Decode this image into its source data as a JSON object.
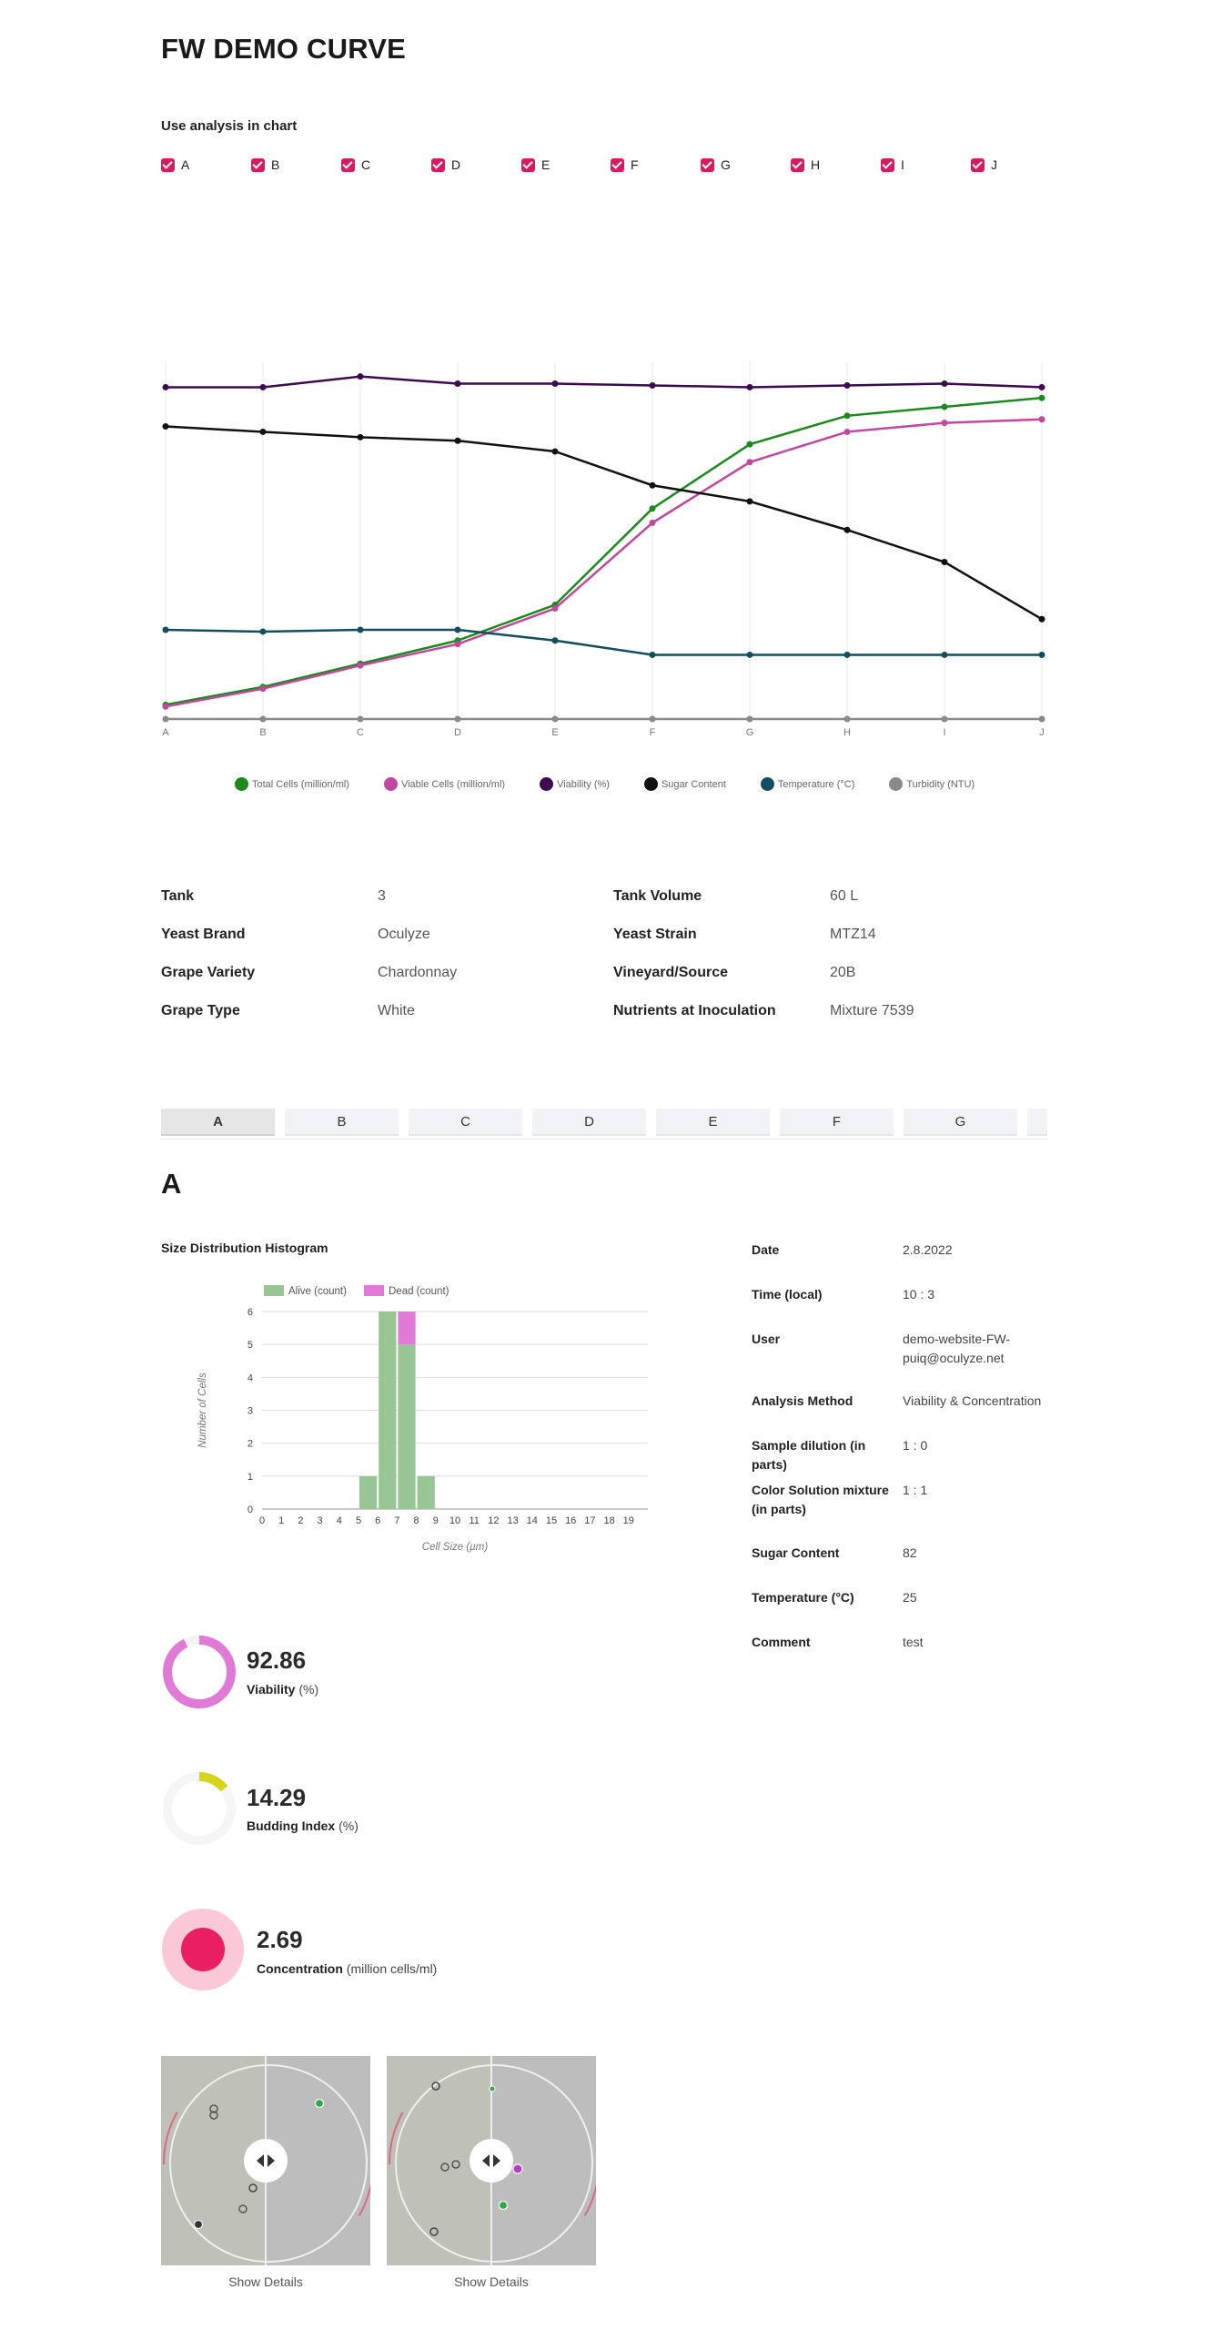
{
  "page": {
    "title": "FW DEMO CURVE"
  },
  "filter": {
    "title": "Use analysis in chart",
    "items": [
      "A",
      "B",
      "C",
      "D",
      "E",
      "F",
      "G",
      "H",
      "I",
      "J"
    ]
  },
  "chart_data": [
    {
      "type": "line",
      "x": [
        "A",
        "B",
        "C",
        "D",
        "E",
        "F",
        "G",
        "H",
        "I",
        "J"
      ],
      "ylim": [
        0,
        100
      ],
      "grid": true,
      "legend_position": "bottom",
      "series": [
        {
          "name": "Total Cells (million/ml)",
          "color": "#1a8a1a",
          "values": [
            4,
            9,
            15.5,
            22,
            32,
            59,
            77,
            85,
            87.5,
            90
          ]
        },
        {
          "name": "Viable Cells (million/ml)",
          "color": "#c2479f",
          "values": [
            3.5,
            8.5,
            15,
            21,
            31,
            55,
            72,
            80.5,
            83,
            84
          ]
        },
        {
          "name": "Viability (%)",
          "color": "#3d0a4f",
          "values": [
            93,
            93,
            96,
            94,
            94,
            93.5,
            93,
            93.5,
            94,
            93
          ]
        },
        {
          "name": "Sugar Content",
          "color": "#111111",
          "values": [
            82,
            80.5,
            79,
            78,
            75,
            65.5,
            61,
            53,
            44,
            28
          ]
        },
        {
          "name": "Temperature (°C)",
          "color": "#134e5e",
          "values": [
            25,
            24.5,
            25,
            25,
            22,
            18,
            18,
            18,
            18,
            18
          ]
        },
        {
          "name": "Turbidity (NTU)",
          "color": "#8a8a8a",
          "values": [
            0,
            0,
            0,
            0,
            0,
            0,
            0,
            0,
            0,
            0
          ]
        }
      ]
    },
    {
      "type": "bar",
      "title": "Size Distribution Histogram",
      "xlabel": "Cell Size (µm)",
      "ylabel": "Number of Cells",
      "categories": [
        "0",
        "1",
        "2",
        "3",
        "4",
        "5",
        "6",
        "7",
        "8",
        "9",
        "10",
        "11",
        "12",
        "13",
        "14",
        "15",
        "16",
        "17",
        "18",
        "19"
      ],
      "ylim": [
        0,
        6
      ],
      "stacked": true,
      "legend_position": "top",
      "series": [
        {
          "name": "Alive (count)",
          "color": "#98c594",
          "values": [
            0,
            0,
            0,
            0,
            0,
            1,
            6,
            5,
            1,
            0,
            0,
            0,
            0,
            0,
            0,
            0,
            0,
            0,
            0,
            0
          ]
        },
        {
          "name": "Dead (count)",
          "color": "#e07ad6",
          "values": [
            0,
            0,
            0,
            0,
            0,
            0,
            0,
            1,
            0,
            0,
            0,
            0,
            0,
            0,
            0,
            0,
            0,
            0,
            0,
            0
          ]
        }
      ]
    }
  ],
  "info": [
    {
      "label": "Tank",
      "value": "3"
    },
    {
      "label": "Tank Volume",
      "value": "60 L"
    },
    {
      "label": "Yeast Brand",
      "value": "Oculyze"
    },
    {
      "label": "Yeast Strain",
      "value": "MTZ14"
    },
    {
      "label": "Grape Variety",
      "value": "Chardonnay"
    },
    {
      "label": "Vineyard/Source",
      "value": "20B"
    },
    {
      "label": "Grape Type",
      "value": "White"
    },
    {
      "label": "Nutrients at Inoculation",
      "value": "Mixture 7539"
    }
  ],
  "tabs": [
    "A",
    "B",
    "C",
    "D",
    "E",
    "F",
    "G"
  ],
  "analysis": {
    "heading": "A",
    "details": [
      {
        "label": "Date",
        "value": "2.8.2022"
      },
      {
        "label": "Time (local)",
        "value": "10 : 3"
      },
      {
        "label": "User",
        "value": "demo-website-FW-puiq@oculyze.net"
      },
      {
        "label": "Analysis Method",
        "value": "Viability & Concentration"
      },
      {
        "label": "Sample dilution (in parts)",
        "value": "1 : 0"
      },
      {
        "label": "Color Solution mixture (in parts)",
        "value": "1 : 1"
      },
      {
        "label": "Sugar Content",
        "value": "82"
      },
      {
        "label": "Temperature (°C)",
        "value": "25"
      },
      {
        "label": "Comment",
        "value": "test"
      }
    ],
    "metrics": {
      "viability": {
        "value": "92.86",
        "label": "Viability",
        "unit": "(%)",
        "fraction": 0.9286,
        "color": "#e07ad6"
      },
      "budding": {
        "value": "14.29",
        "label": "Budding Index",
        "unit": "(%)",
        "fraction": 0.1429,
        "color": "#d6d41a"
      },
      "concentration": {
        "value": "2.69",
        "label": "Concentration",
        "unit": "(million cells/ml)",
        "color": "#e91e63",
        "ring_color": "#fbc8d8"
      }
    },
    "images": {
      "show_details": "Show Details"
    }
  }
}
